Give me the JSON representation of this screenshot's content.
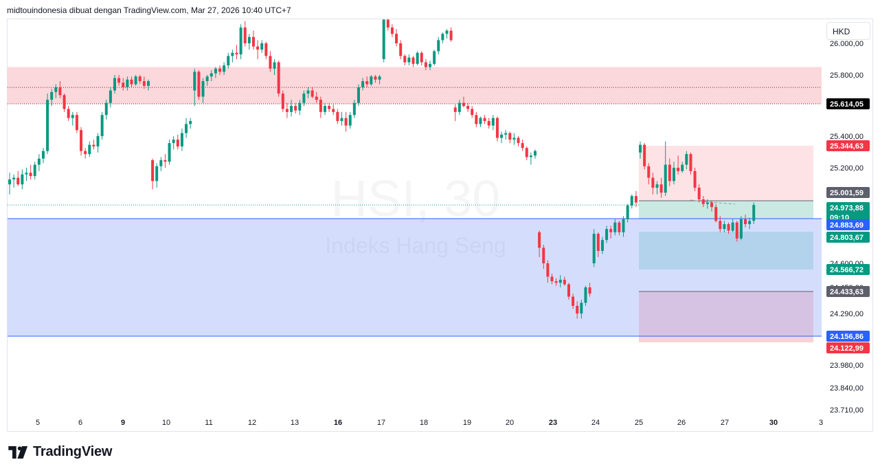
{
  "header": {
    "text": "midtouindonesia dibuat dengan TradingView.com, Mar 27, 2026 10:40 UTC+7"
  },
  "symbol_button": {
    "label": "HKD"
  },
  "watermark": {
    "symbol": "HSI, 30",
    "name": "Indeks Hang Seng"
  },
  "footer": {
    "logo_text": "TradingView"
  },
  "colors": {
    "up": "#089981",
    "down": "#f23645",
    "supply_zone": "#fbd8dc",
    "demand_zone": "#d4defc",
    "tp_zone": "#c9e9e2",
    "sl_zone": "#fde3e5",
    "purple_zone": "#d6c3e4"
  },
  "chart_data": {
    "type": "candlestick",
    "title": "HSI, 30",
    "subtitle": "Indeks Hang Seng",
    "currency": "HKD",
    "y_ticks": [
      "26.000,00",
      "25.800,00",
      "25.400,00",
      "25.200,00",
      "24.600,00",
      "24.450,00",
      "24.290,00",
      "23.980,00",
      "23.840,00",
      "23.710,00"
    ],
    "x_ticks": [
      {
        "label": "5",
        "bold": false
      },
      {
        "label": "6",
        "bold": false
      },
      {
        "label": "9",
        "bold": true
      },
      {
        "label": "10",
        "bold": false
      },
      {
        "label": "11",
        "bold": false
      },
      {
        "label": "12",
        "bold": false
      },
      {
        "label": "13",
        "bold": false
      },
      {
        "label": "16",
        "bold": true
      },
      {
        "label": "17",
        "bold": false
      },
      {
        "label": "18",
        "bold": false
      },
      {
        "label": "19",
        "bold": false
      },
      {
        "label": "20",
        "bold": false
      },
      {
        "label": "23",
        "bold": true
      },
      {
        "label": "24",
        "bold": false
      },
      {
        "label": "25",
        "bold": false
      },
      {
        "label": "26",
        "bold": false
      },
      {
        "label": "27",
        "bold": false
      },
      {
        "label": "30",
        "bold": true
      },
      {
        "label": "3",
        "bold": false
      }
    ],
    "price_labels": [
      {
        "value": "25.614,05",
        "sub": "",
        "bg": "#000000",
        "fg": "#ffffff"
      },
      {
        "value": "25.344,63",
        "sub": "",
        "bg": "#f23645",
        "fg": "#ffffff"
      },
      {
        "value": "25.001,59",
        "sub": "",
        "bg": "#5d606b",
        "fg": "#ffffff"
      },
      {
        "value": "24.973,88",
        "sub": "09:10",
        "bg": "#089981",
        "fg": "#ffffff"
      },
      {
        "value": "24.883,69",
        "sub": "",
        "bg": "#2962ff",
        "fg": "#ffffff"
      },
      {
        "value": "24.803,67",
        "sub": "",
        "bg": "#089981",
        "fg": "#ffffff"
      },
      {
        "value": "24.566,72",
        "sub": "",
        "bg": "#089981",
        "fg": "#ffffff"
      },
      {
        "value": "24.433,63",
        "sub": "",
        "bg": "#5d606b",
        "fg": "#ffffff"
      },
      {
        "value": "24.156,86",
        "sub": "",
        "bg": "#2962ff",
        "fg": "#ffffff"
      },
      {
        "value": "24.122,99",
        "sub": "",
        "bg": "#f23645",
        "fg": "#ffffff"
      }
    ],
    "zones": {
      "supply": {
        "top": 25850,
        "bottom": 25614.05
      },
      "demand": {
        "top": 24883.69,
        "bottom": 24156.86
      },
      "short_position": {
        "entry": 25001.59,
        "stop": 25344.63,
        "tp1": 24803.67,
        "tp2": 24566.72,
        "tp3": 24433.63,
        "target": 24122.99
      }
    },
    "last_price": 24973.88,
    "candles": [
      [
        25100,
        25170,
        25040,
        25130
      ],
      [
        25130,
        25160,
        25080,
        25140
      ],
      [
        25140,
        25180,
        25090,
        25100
      ],
      [
        25100,
        25190,
        25070,
        25160
      ],
      [
        25160,
        25200,
        25120,
        25170
      ],
      [
        25170,
        25220,
        25130,
        25150
      ],
      [
        25150,
        25240,
        25130,
        25220
      ],
      [
        25220,
        25290,
        25180,
        25260
      ],
      [
        25260,
        25330,
        25230,
        25310
      ],
      [
        25310,
        25680,
        25290,
        25640
      ],
      [
        25640,
        25710,
        25600,
        25690
      ],
      [
        25690,
        25740,
        25650,
        25720
      ],
      [
        25720,
        25760,
        25650,
        25670
      ],
      [
        25670,
        25680,
        25560,
        25580
      ],
      [
        25580,
        25600,
        25500,
        25520
      ],
      [
        25520,
        25560,
        25470,
        25540
      ],
      [
        25540,
        25560,
        25420,
        25440
      ],
      [
        25440,
        25460,
        25280,
        25310
      ],
      [
        25310,
        25330,
        25260,
        25290
      ],
      [
        25290,
        25370,
        25270,
        25350
      ],
      [
        25350,
        25380,
        25320,
        25340
      ],
      [
        25340,
        25420,
        25300,
        25400
      ],
      [
        25400,
        25560,
        25380,
        25540
      ],
      [
        25540,
        25640,
        25510,
        25620
      ],
      [
        25620,
        25720,
        25590,
        25700
      ],
      [
        25700,
        25800,
        25680,
        25780
      ],
      [
        25780,
        25800,
        25730,
        25750
      ],
      [
        25750,
        25780,
        25700,
        25720
      ],
      [
        25720,
        25790,
        25700,
        25770
      ],
      [
        25770,
        25790,
        25720,
        25740
      ],
      [
        25740,
        25800,
        25730,
        25790
      ],
      [
        25790,
        25800,
        25740,
        25760
      ],
      [
        25760,
        25790,
        25710,
        25730
      ],
      [
        25730,
        25770,
        25700,
        25760
      ],
      [
        25250,
        25260,
        25070,
        25120
      ],
      [
        25120,
        25230,
        25080,
        25210
      ],
      [
        25210,
        25270,
        25180,
        25250
      ],
      [
        25250,
        25290,
        25200,
        25240
      ],
      [
        25240,
        25380,
        25220,
        25360
      ],
      [
        25360,
        25400,
        25320,
        25380
      ],
      [
        25380,
        25410,
        25320,
        25340
      ],
      [
        25340,
        25450,
        25310,
        25420
      ],
      [
        25420,
        25520,
        25390,
        25480
      ],
      [
        25480,
        25520,
        25450,
        25500
      ],
      [
        25700,
        25840,
        25600,
        25820
      ],
      [
        25820,
        25830,
        25640,
        25660
      ],
      [
        25660,
        25780,
        25620,
        25760
      ],
      [
        25760,
        25800,
        25730,
        25790
      ],
      [
        25790,
        25830,
        25760,
        25810
      ],
      [
        25810,
        25850,
        25780,
        25840
      ],
      [
        25840,
        25860,
        25800,
        25820
      ],
      [
        25820,
        25880,
        25800,
        25860
      ],
      [
        25860,
        25940,
        25840,
        25920
      ],
      [
        25920,
        25960,
        25880,
        25940
      ],
      [
        25940,
        25990,
        25900,
        25930
      ],
      [
        25930,
        26120,
        25900,
        26100
      ],
      [
        26100,
        26140,
        25980,
        26000
      ],
      [
        26000,
        26060,
        25960,
        26040
      ],
      [
        26040,
        26080,
        25960,
        25980
      ],
      [
        25980,
        26020,
        25900,
        25960
      ],
      [
        25960,
        26020,
        25940,
        26000
      ],
      [
        26000,
        26010,
        25900,
        25920
      ],
      [
        25920,
        25950,
        25820,
        25840
      ],
      [
        25840,
        25900,
        25800,
        25880
      ],
      [
        25880,
        25890,
        25660,
        25680
      ],
      [
        25680,
        25700,
        25560,
        25580
      ],
      [
        25580,
        25620,
        25520,
        25560
      ],
      [
        25560,
        25640,
        25530,
        25600
      ],
      [
        25600,
        25620,
        25550,
        25570
      ],
      [
        25570,
        25640,
        25540,
        25620
      ],
      [
        25620,
        25700,
        25600,
        25680
      ],
      [
        25680,
        25720,
        25650,
        25700
      ],
      [
        25700,
        25720,
        25650,
        25660
      ],
      [
        25660,
        25690,
        25620,
        25640
      ],
      [
        25640,
        25660,
        25520,
        25560
      ],
      [
        25560,
        25620,
        25540,
        25600
      ],
      [
        25600,
        25620,
        25560,
        25580
      ],
      [
        25580,
        25610,
        25540,
        25560
      ],
      [
        25560,
        25580,
        25480,
        25500
      ],
      [
        25500,
        25560,
        25470,
        25520
      ],
      [
        25520,
        25560,
        25430,
        25470
      ],
      [
        25470,
        25560,
        25450,
        25540
      ],
      [
        25540,
        25640,
        25520,
        25620
      ],
      [
        25620,
        25740,
        25600,
        25720
      ],
      [
        25720,
        25780,
        25700,
        25760
      ],
      [
        25760,
        25790,
        25720,
        25740
      ],
      [
        25740,
        25800,
        25730,
        25790
      ],
      [
        25790,
        25800,
        25750,
        25770
      ],
      [
        25770,
        25800,
        25740,
        25790
      ],
      [
        25900,
        26180,
        25880,
        26150
      ],
      [
        26150,
        26180,
        26080,
        26100
      ],
      [
        26100,
        26120,
        26040,
        26060
      ],
      [
        26060,
        26090,
        25980,
        26000
      ],
      [
        26000,
        26020,
        25900,
        25920
      ],
      [
        25920,
        25930,
        25860,
        25880
      ],
      [
        25880,
        25930,
        25860,
        25910
      ],
      [
        25910,
        25920,
        25850,
        25870
      ],
      [
        25870,
        25950,
        25860,
        25940
      ],
      [
        25940,
        25950,
        25860,
        25880
      ],
      [
        25880,
        25900,
        25830,
        25850
      ],
      [
        25850,
        25890,
        25830,
        25870
      ],
      [
        25870,
        25960,
        25860,
        25950
      ],
      [
        25950,
        26040,
        25930,
        26020
      ],
      [
        26020,
        26070,
        26000,
        26060
      ],
      [
        26060,
        26090,
        26030,
        26080
      ],
      [
        26080,
        26100,
        26010,
        26020
      ],
      [
        25590,
        25610,
        25500,
        25560
      ],
      [
        25560,
        25640,
        25540,
        25620
      ],
      [
        25620,
        25660,
        25590,
        25600
      ],
      [
        25600,
        25620,
        25560,
        25580
      ],
      [
        25580,
        25600,
        25520,
        25540
      ],
      [
        25540,
        25560,
        25460,
        25480
      ],
      [
        25480,
        25530,
        25460,
        25520
      ],
      [
        25520,
        25540,
        25480,
        25500
      ],
      [
        25500,
        25520,
        25450,
        25470
      ],
      [
        25470,
        25540,
        25440,
        25520
      ],
      [
        25520,
        25530,
        25370,
        25390
      ],
      [
        25390,
        25430,
        25360,
        25410
      ],
      [
        25410,
        25440,
        25380,
        25420
      ],
      [
        25420,
        25430,
        25360,
        25380
      ],
      [
        25380,
        25420,
        25350,
        25390
      ],
      [
        25390,
        25400,
        25340,
        25360
      ],
      [
        25360,
        25380,
        25310,
        25330
      ],
      [
        25330,
        25340,
        25250,
        25270
      ],
      [
        25270,
        25300,
        25220,
        25280
      ],
      [
        25280,
        25320,
        25260,
        25310
      ],
      [
        24800,
        24810,
        24640,
        24700
      ],
      [
        24700,
        24720,
        24570,
        24600
      ],
      [
        24600,
        24620,
        24480,
        24520
      ],
      [
        24520,
        24540,
        24470,
        24490
      ],
      [
        24490,
        24510,
        24460,
        24480
      ],
      [
        24480,
        24530,
        24450,
        24500
      ],
      [
        24500,
        24520,
        24460,
        24470
      ],
      [
        24470,
        24480,
        24380,
        24400
      ],
      [
        24400,
        24420,
        24320,
        24340
      ],
      [
        24340,
        24370,
        24260,
        24290
      ],
      [
        24290,
        24380,
        24260,
        24360
      ],
      [
        24360,
        24460,
        24340,
        24450
      ],
      [
        24450,
        24480,
        24400,
        24420
      ],
      [
        24600,
        24820,
        24580,
        24790
      ],
      [
        24790,
        24800,
        24640,
        24680
      ],
      [
        24680,
        24770,
        24660,
        24750
      ],
      [
        24750,
        24840,
        24730,
        24820
      ],
      [
        24820,
        24840,
        24760,
        24800
      ],
      [
        24800,
        24880,
        24780,
        24860
      ],
      [
        24860,
        24870,
        24780,
        24800
      ],
      [
        24800,
        24900,
        24770,
        24880
      ],
      [
        24880,
        24980,
        24860,
        24970
      ],
      [
        24970,
        25040,
        24950,
        25030
      ],
      [
        25030,
        25060,
        24960,
        24990
      ],
      [
        25300,
        25370,
        25260,
        25350
      ],
      [
        25350,
        25360,
        25190,
        25210
      ],
      [
        25210,
        25230,
        25100,
        25140
      ],
      [
        25140,
        25170,
        25040,
        25080
      ],
      [
        25080,
        25120,
        25040,
        25100
      ],
      [
        25100,
        25140,
        25020,
        25050
      ],
      [
        25050,
        25370,
        25030,
        25220
      ],
      [
        25220,
        25260,
        25090,
        25120
      ],
      [
        25120,
        25240,
        25100,
        25200
      ],
      [
        25200,
        25280,
        25160,
        25180
      ],
      [
        25180,
        25240,
        25170,
        25220
      ],
      [
        25220,
        25310,
        25190,
        25290
      ],
      [
        25290,
        25300,
        25160,
        25180
      ],
      [
        25180,
        25200,
        25060,
        25080
      ],
      [
        25080,
        25100,
        24990,
        25010
      ],
      [
        25010,
        25030,
        24960,
        24980
      ],
      [
        24980,
        25010,
        24950,
        24990
      ],
      [
        24990,
        25000,
        24930,
        24960
      ],
      [
        24960,
        24980,
        24860,
        24870
      ],
      [
        24870,
        24900,
        24800,
        24820
      ],
      [
        24820,
        24870,
        24800,
        24850
      ],
      [
        24850,
        24860,
        24790,
        24810
      ],
      [
        24810,
        24880,
        24800,
        24860
      ],
      [
        24860,
        24870,
        24740,
        24760
      ],
      [
        24760,
        24900,
        24750,
        24880
      ],
      [
        24880,
        24910,
        24830,
        24850
      ],
      [
        24850,
        24890,
        24820,
        24870
      ],
      [
        24870,
        24990,
        24850,
        24974
      ]
    ]
  }
}
